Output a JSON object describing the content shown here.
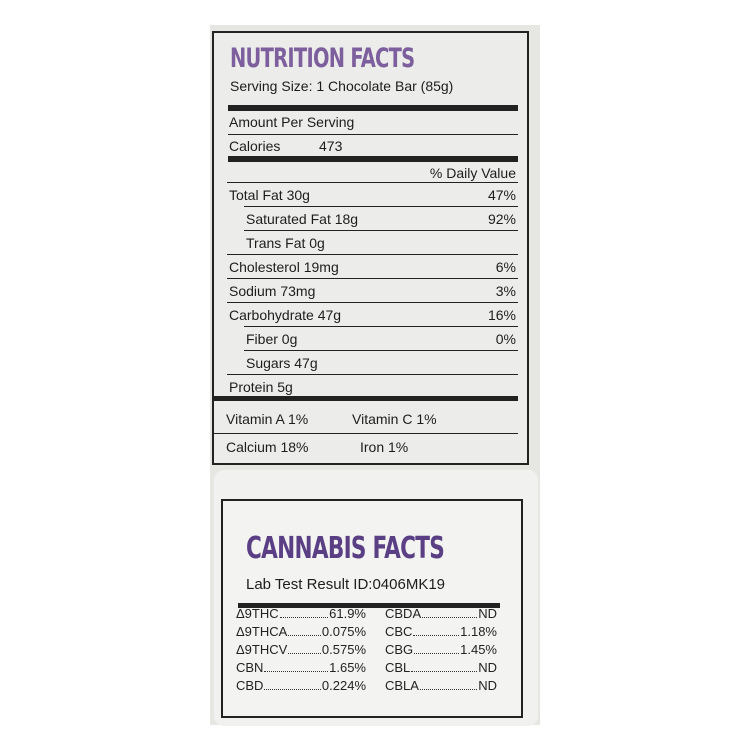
{
  "nutrition": {
    "title": "NUTRITION FACTS",
    "serving": "Serving Size: 1 Chocolate Bar (85g)",
    "amount_per_serving": "Amount Per Serving",
    "calories": {
      "label": "Calories",
      "value": "473"
    },
    "dv_header": "% Daily Value",
    "rows": [
      {
        "label": "Total Fat 30g",
        "dv": "47%",
        "sub": [
          {
            "label": "Saturated Fat 18g",
            "dv": "92%"
          },
          {
            "label": "Trans Fat 0g"
          }
        ]
      },
      {
        "label": "Cholesterol  19mg",
        "dv": "6%"
      },
      {
        "label": "Sodium 73mg",
        "dv": "3%"
      },
      {
        "label": "Carbohydrate 47g",
        "dv": "16%",
        "sub": [
          {
            "label": "Fiber 0g",
            "dv": "0%"
          },
          {
            "label": "Sugars 47g"
          }
        ]
      },
      {
        "label": "Protein 5g"
      }
    ],
    "vitamins": [
      [
        "Vitamin A 1%",
        "Vitamin C 1%"
      ],
      [
        "Calcium  18%",
        "Iron 1%"
      ]
    ]
  },
  "cannabis": {
    "title": "CANNABIS FACTS",
    "lab": "Lab Test Result ID:0406MK19",
    "left": [
      [
        "Δ9THC",
        "61.9%"
      ],
      [
        "Δ9THCA",
        "0.075%"
      ],
      [
        "Δ9THCV",
        "0.575%"
      ],
      [
        "CBN",
        "1.65%"
      ],
      [
        "CBD",
        "0.224%"
      ]
    ],
    "right": [
      [
        "CBDA",
        "ND"
      ],
      [
        "CBC",
        "1.18%"
      ],
      [
        "CBG",
        "1.45%"
      ],
      [
        "CBL",
        "ND"
      ],
      [
        "CBLA",
        "ND"
      ]
    ]
  }
}
